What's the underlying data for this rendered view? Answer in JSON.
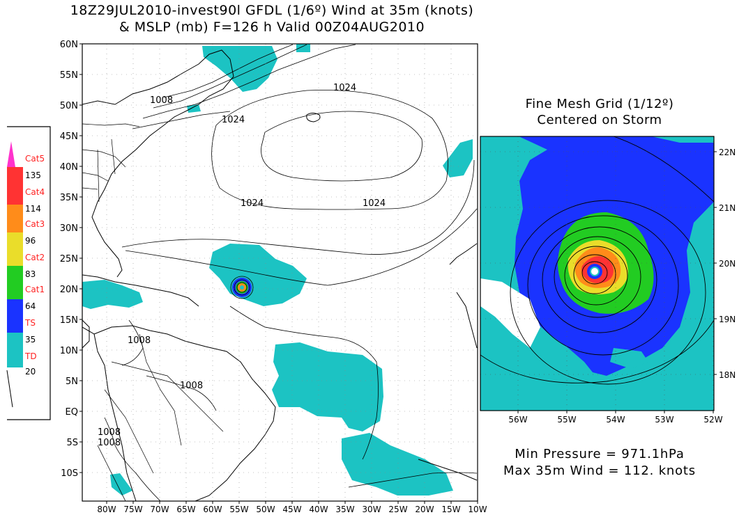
{
  "title_line1": "18Z29JUL2010-invest90l GFDL (1/6º) Wind at 35m (knots)",
  "title_line2": "& MSLP (mb) F=126 h Valid 00Z04AUG2010",
  "inset_title_line1": "Fine Mesh Grid (1/12º)",
  "inset_title_line2": "Centered on Storm",
  "min_pressure": "Min Pressure = 971.1hPa",
  "max_wind": "Max 35m Wind = 112. knots",
  "main_map": {
    "lat_labels": [
      "60N",
      "55N",
      "50N",
      "45N",
      "40N",
      "35N",
      "30N",
      "25N",
      "20N",
      "15N",
      "10N",
      "5N",
      "EQ",
      "5S",
      "10S"
    ],
    "lon_labels": [
      "80W",
      "75W",
      "70W",
      "65W",
      "60W",
      "55W",
      "50W",
      "45W",
      "40W",
      "35W",
      "30W",
      "25W",
      "20W",
      "15W",
      "10W"
    ],
    "isobar_labels": [
      "1024",
      "1008",
      "1024",
      "1024",
      "1024",
      "1008",
      "1008",
      "1008",
      "1008"
    ]
  },
  "inset_map": {
    "lat_labels": [
      "22N",
      "21N",
      "20N",
      "19N",
      "18N"
    ],
    "lon_labels": [
      "56W",
      "55W",
      "54W",
      "53W",
      "52W"
    ]
  },
  "legend": {
    "items": [
      {
        "category": "Cat5",
        "color": "#ff33cc"
      },
      {
        "category": "Cat4",
        "color": "#ff3333"
      },
      {
        "category": "Cat3",
        "color": "#ff8c1a"
      },
      {
        "category": "Cat2",
        "color": "#eadd2a"
      },
      {
        "category": "Cat1",
        "color": "#22cc22"
      },
      {
        "category": "TS",
        "color": "#1a33ff"
      },
      {
        "category": "TD",
        "color": "#1cc3c3"
      }
    ],
    "thresholds": [
      "135",
      "114",
      "96",
      "83",
      "64",
      "35",
      "20"
    ]
  },
  "colors": {
    "td": "#1cc3c3",
    "ts": "#1a33ff",
    "cat1": "#22cc22",
    "cat2": "#eadd2a",
    "cat3": "#ff8c1a",
    "cat4": "#ff3333",
    "cat5": "#ff33cc",
    "category_text": "#ff2222"
  }
}
